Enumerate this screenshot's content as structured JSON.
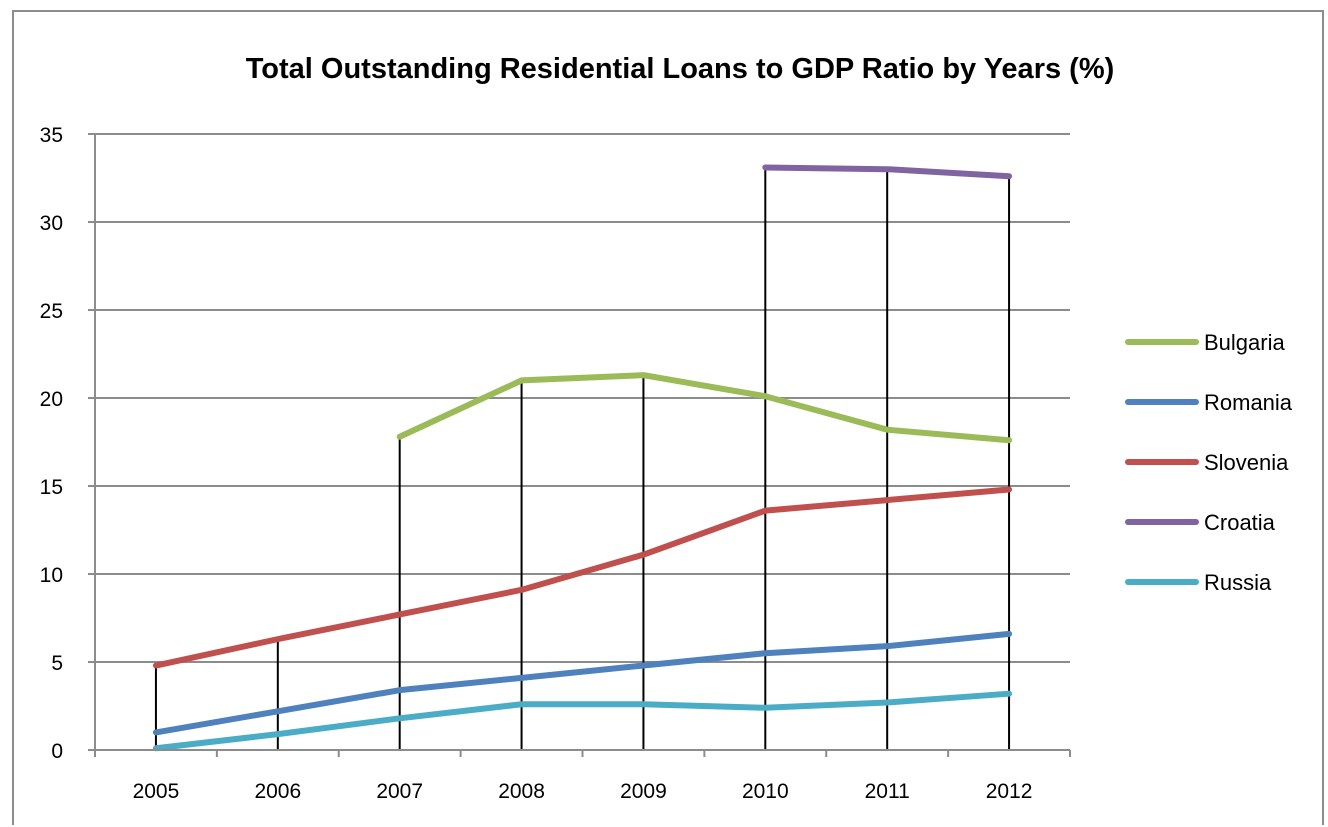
{
  "chart_data": {
    "type": "line",
    "title": "Total Outstanding Residential Loans to GDP Ratio by Years (%)",
    "xlabel": "",
    "ylabel": "",
    "ylim": [
      0,
      35
    ],
    "y_ticks": [
      "0",
      "5",
      "10",
      "15",
      "20",
      "25",
      "30",
      "35"
    ],
    "categories": [
      "2005",
      "2006",
      "2007",
      "2008",
      "2009",
      "2010",
      "2011",
      "2012"
    ],
    "grid": "horizontal",
    "drop_lines": true,
    "legend_position": "right",
    "series": [
      {
        "name": "Bulgaria",
        "color": "#9bbb59",
        "values": [
          null,
          null,
          17.8,
          21.0,
          21.3,
          20.1,
          18.2,
          17.6
        ]
      },
      {
        "name": "Romania",
        "color": "#4f81bd",
        "values": [
          1.0,
          2.2,
          3.4,
          4.1,
          4.8,
          5.5,
          5.9,
          6.6
        ]
      },
      {
        "name": "Slovenia",
        "color": "#c0504d",
        "values": [
          4.8,
          6.3,
          7.7,
          9.1,
          11.1,
          13.6,
          14.2,
          14.8
        ]
      },
      {
        "name": "Croatia",
        "color": "#8064a2",
        "values": [
          null,
          null,
          null,
          null,
          null,
          33.1,
          33.0,
          32.6
        ]
      },
      {
        "name": "Russia",
        "color": "#4bacc6",
        "values": [
          0.1,
          0.9,
          1.8,
          2.6,
          2.6,
          2.4,
          2.7,
          3.2
        ]
      }
    ]
  }
}
